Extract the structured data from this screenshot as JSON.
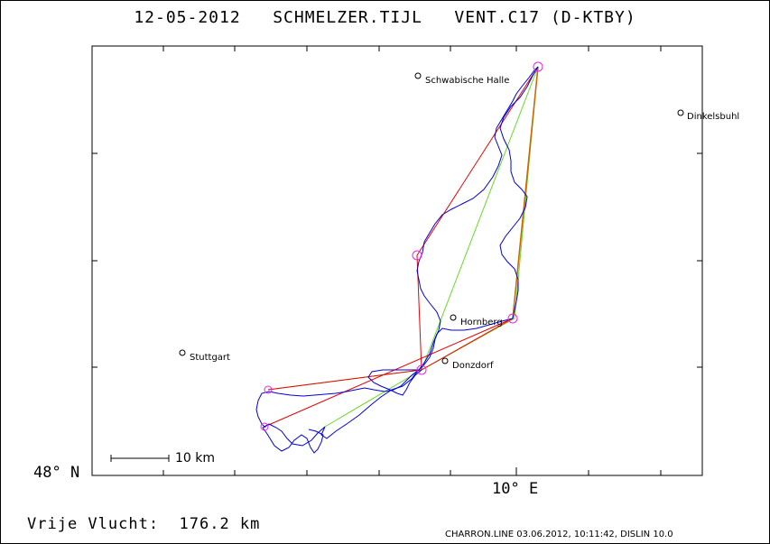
{
  "header": {
    "title": "12-05-2012   SCHMELZER.TIJL   VENT.C17 (D-KTBY)"
  },
  "map": {
    "lat_label": "48° N",
    "lon_label": "10° E",
    "scale_label": "10 km",
    "cities": [
      {
        "name": "Schwabische Halle"
      },
      {
        "name": "Dinkelsbuhl"
      },
      {
        "name": "Hornberg"
      },
      {
        "name": "Stuttgart"
      },
      {
        "name": "Donzdorf"
      }
    ],
    "colors": {
      "track": "#0000dd",
      "task_line": "#ee0000",
      "optimized_line": "#66dd22",
      "final_leg": "#cc6600",
      "turnpoint": "#ee22ee"
    }
  },
  "footer": {
    "distance_label": "Vrije Vlucht:  176.2 km",
    "software_info": "CHARRON.LINE 03.06.2012, 10:11:42, DISLIN 10.0"
  }
}
